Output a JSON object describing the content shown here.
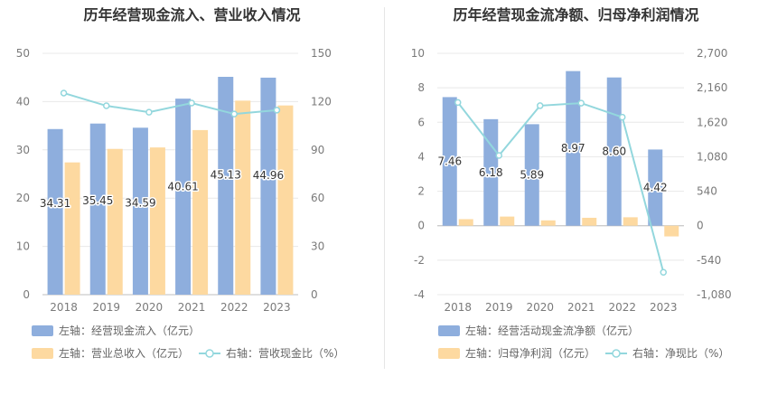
{
  "chart_data": [
    {
      "type": "bar",
      "title": "历年经营现金流入、营业收入情况",
      "categories": [
        "2018",
        "2019",
        "2020",
        "2021",
        "2022",
        "2023"
      ],
      "y_left": {
        "ticks": [
          "0",
          "10",
          "20",
          "30",
          "40",
          "50"
        ],
        "lim": [
          0,
          50
        ]
      },
      "y_right": {
        "ticks": [
          "0",
          "30",
          "60",
          "90",
          "120",
          "150"
        ],
        "lim": [
          0,
          150
        ]
      },
      "series": [
        {
          "name": "左轴：经营现金流入（亿元）",
          "type": "bar",
          "axis": "left",
          "color": "#8eaedd",
          "values": [
            34.31,
            35.45,
            34.59,
            40.61,
            45.13,
            44.96
          ],
          "labels": [
            "34.31",
            "35.45",
            "34.59",
            "40.61",
            "45.13",
            "44.96"
          ]
        },
        {
          "name": "左轴：营业总收入（亿元）",
          "type": "bar",
          "axis": "left",
          "color": "#fdd9a0",
          "values": [
            27.4,
            30.2,
            30.5,
            34.1,
            40.2,
            39.2
          ]
        },
        {
          "name": "右轴：营收现金比（%）",
          "type": "line",
          "axis": "right",
          "color": "#93d7dd",
          "values": [
            125.3,
            117.4,
            113.4,
            119.1,
            112.3,
            114.7
          ]
        }
      ],
      "grid": true,
      "legend_position": "bottom"
    },
    {
      "type": "bar",
      "title": "历年经营现金流净额、归母净利润情况",
      "categories": [
        "2018",
        "2019",
        "2020",
        "2021",
        "2022",
        "2023"
      ],
      "y_left": {
        "ticks": [
          "-4",
          "-2",
          "0",
          "2",
          "4",
          "6",
          "8",
          "10"
        ],
        "lim": [
          -4,
          10
        ]
      },
      "y_right": {
        "ticks": [
          "-1,080",
          "-540",
          "0",
          "540",
          "1,080",
          "1,620",
          "2,160",
          "2,700"
        ],
        "lim": [
          -1080,
          2700
        ]
      },
      "series": [
        {
          "name": "左轴：经营活动现金流净额（亿元）",
          "type": "bar",
          "axis": "left",
          "color": "#8eaedd",
          "values": [
            7.46,
            6.18,
            5.89,
            8.97,
            8.6,
            4.42
          ],
          "labels": [
            "7.46",
            "6.18",
            "5.89",
            "8.97",
            "8.60",
            "4.42"
          ]
        },
        {
          "name": "左轴：归母净利润（亿元）",
          "type": "bar",
          "axis": "left",
          "color": "#fdd9a0",
          "values": [
            0.38,
            0.53,
            0.31,
            0.46,
            0.49,
            -0.62
          ]
        },
        {
          "name": "右轴：净现比（%）",
          "type": "line",
          "axis": "right",
          "color": "#93d7dd",
          "values": [
            1930,
            1100,
            1880,
            1920,
            1700,
            -730
          ]
        }
      ],
      "grid": true,
      "legend_position": "bottom"
    }
  ]
}
